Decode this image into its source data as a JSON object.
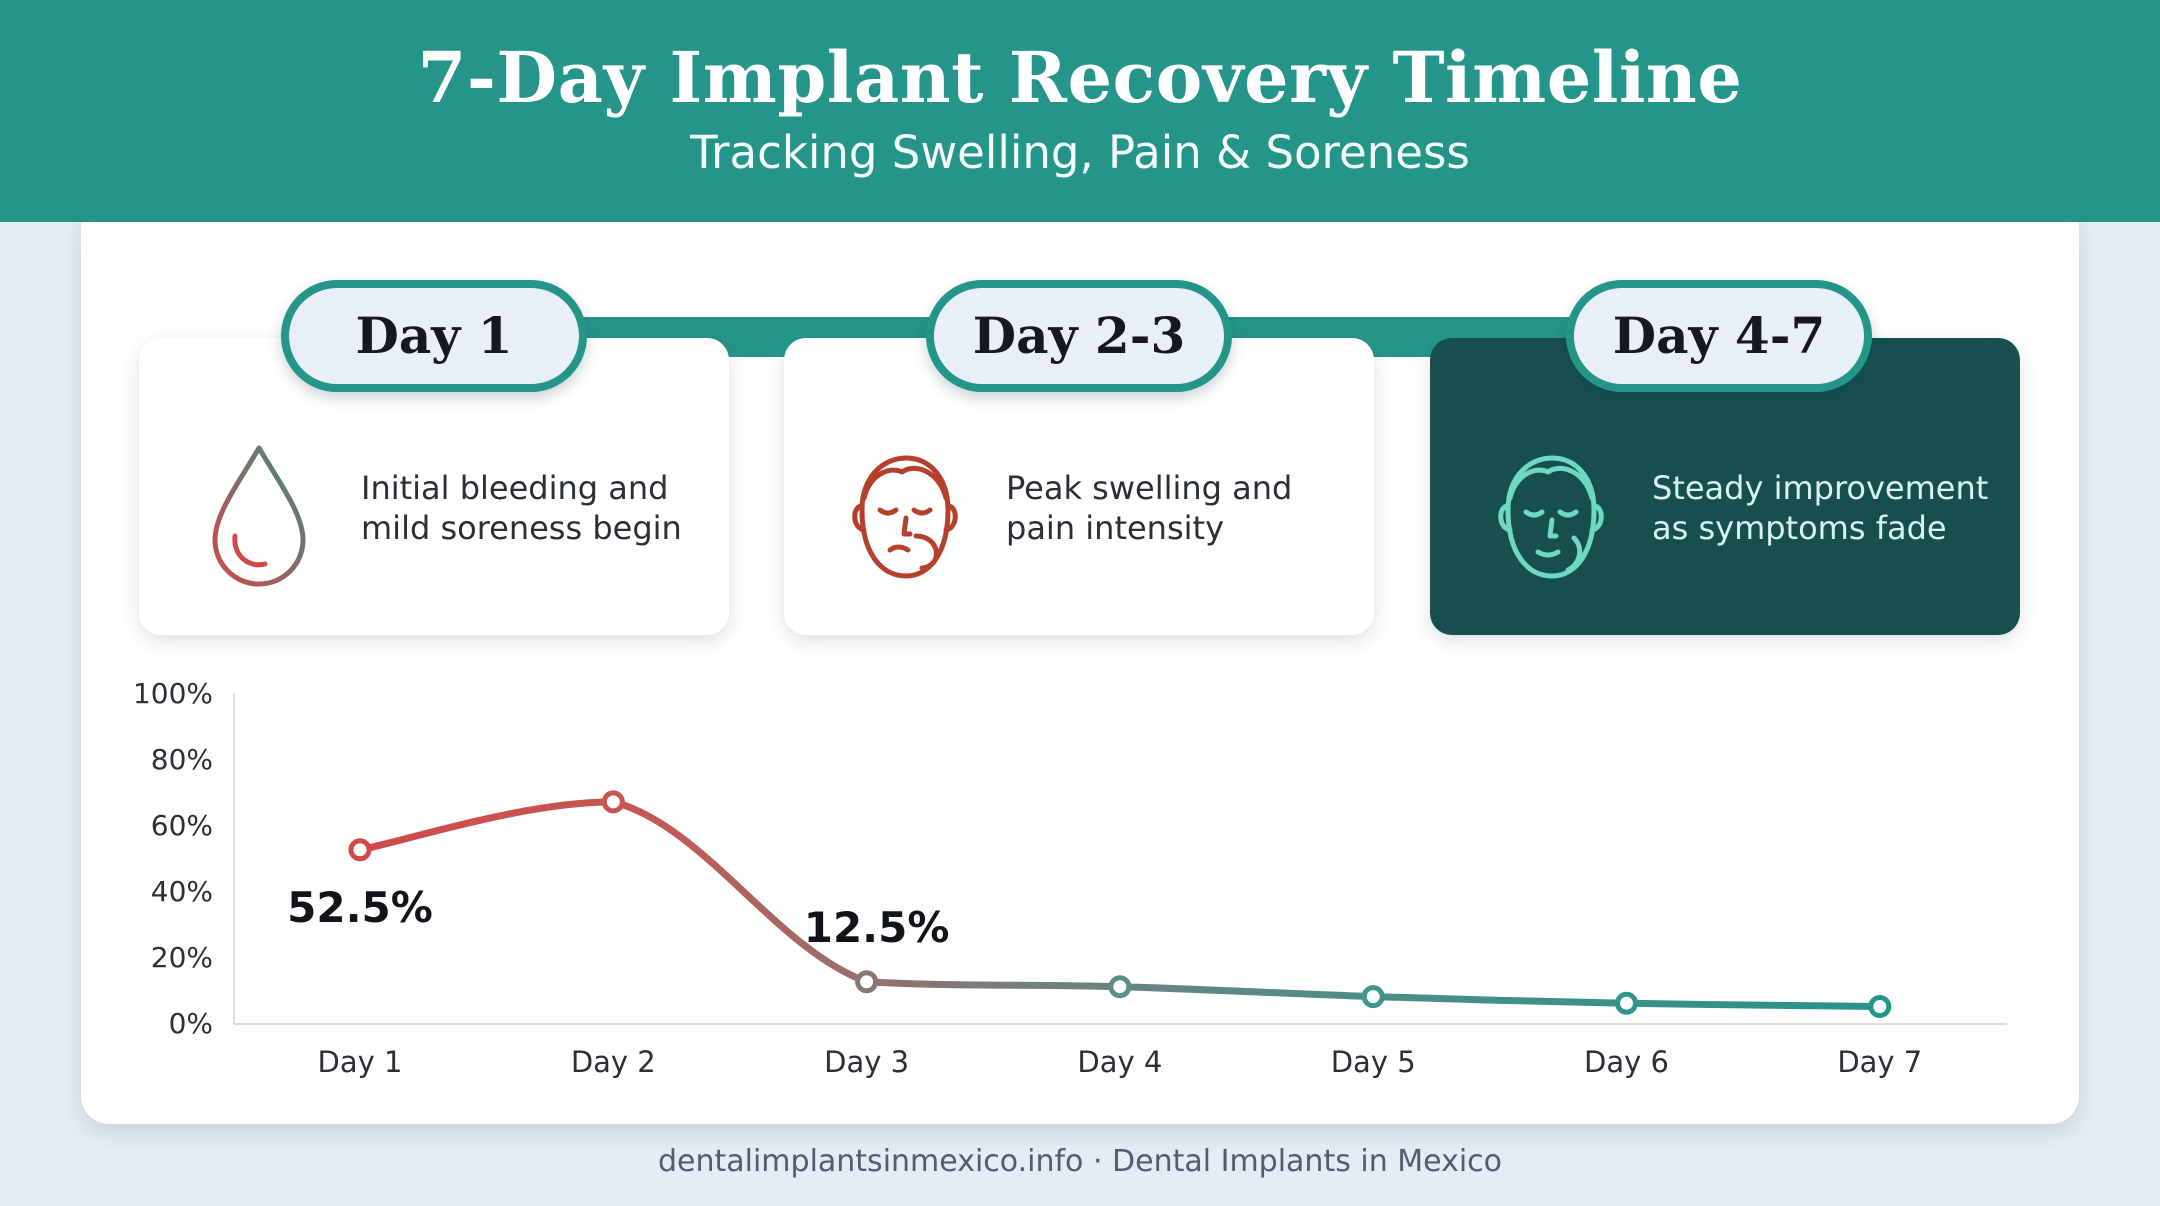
{
  "header": {
    "title": "7-Day Implant Recovery Timeline",
    "subtitle": "Tracking Swelling, Pain & Soreness"
  },
  "stages": [
    {
      "label": "Day 1",
      "description": "Initial bleeding and mild soreness begin",
      "icon": "blood-drop-icon"
    },
    {
      "label": "Day 2-3",
      "description": "Peak swelling and pain intensity",
      "icon": "swollen-face-icon"
    },
    {
      "label": "Day 4-7",
      "description": "Steady improvement as symptoms fade",
      "icon": "relieved-face-icon"
    }
  ],
  "colors": {
    "teal": "#25958a",
    "dark_teal": "#174f4f",
    "red": "#d04a4a",
    "face_red": "#b5412c",
    "mint": "#6fd8c0"
  },
  "chart_data": {
    "type": "line",
    "categories": [
      "Day 1",
      "Day 2",
      "Day 3",
      "Day 4",
      "Day 5",
      "Day 6",
      "Day 7"
    ],
    "series": [
      {
        "values": [
          52.5,
          67,
          12.5,
          11,
          8,
          6,
          5
        ]
      }
    ],
    "ylim": [
      0,
      100
    ],
    "yticks": [
      "0%",
      "20%",
      "40%",
      "60%",
      "80%",
      "100%"
    ],
    "annotations": [
      {
        "category": "Day 1",
        "text": "52.5%"
      },
      {
        "category": "Day 3",
        "text": "12.5%"
      }
    ],
    "grid": false,
    "xlabel": "",
    "ylabel": ""
  },
  "footer": "dentalimplantsinmexico.info · Dental Implants in Mexico"
}
